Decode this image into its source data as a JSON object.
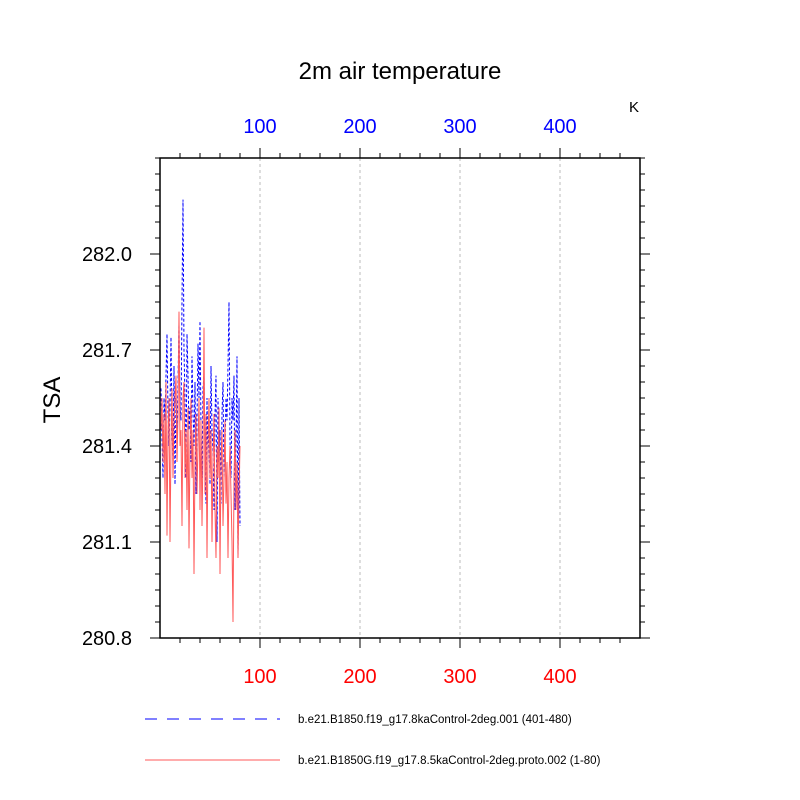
{
  "chart_data": {
    "type": "line",
    "title": "2m air temperature",
    "units_label": "K",
    "ylabel": "TSA",
    "xlabel": "",
    "xlim": [
      0,
      480
    ],
    "ylim": [
      280.8,
      282.3
    ],
    "x_ticks": [
      100,
      200,
      300,
      400
    ],
    "y_ticks": [
      280.8,
      281.1,
      281.4,
      281.7,
      282.0
    ],
    "grid_x": true,
    "series": [
      {
        "name": "b.e21.B1850.f19_g17.8kaControl-2deg.001 (401-480)",
        "color": "#0000ff",
        "style": "dashed",
        "axis": "top",
        "x": [
          1,
          2,
          3,
          4,
          5,
          6,
          7,
          8,
          9,
          10,
          11,
          12,
          13,
          14,
          15,
          16,
          17,
          18,
          19,
          20,
          21,
          22,
          23,
          24,
          25,
          26,
          27,
          28,
          29,
          30,
          31,
          32,
          33,
          34,
          35,
          36,
          37,
          38,
          39,
          40,
          41,
          42,
          43,
          44,
          45,
          46,
          47,
          48,
          49,
          50,
          51,
          52,
          53,
          54,
          55,
          56,
          57,
          58,
          59,
          60,
          61,
          62,
          63,
          64,
          65,
          66,
          67,
          68,
          69,
          70,
          71,
          72,
          73,
          74,
          75,
          76,
          77,
          78,
          79,
          80
        ],
        "values": [
          281.58,
          281.42,
          281.3,
          281.55,
          281.48,
          281.62,
          281.75,
          281.5,
          281.4,
          281.52,
          281.74,
          281.45,
          281.35,
          281.65,
          281.28,
          281.55,
          281.44,
          281.6,
          281.78,
          281.52,
          281.48,
          281.85,
          282.17,
          281.7,
          281.55,
          281.3,
          281.75,
          281.62,
          281.45,
          281.52,
          281.35,
          281.68,
          281.5,
          281.4,
          281.6,
          281.25,
          281.48,
          281.72,
          281.55,
          281.79,
          281.45,
          281.3,
          281.58,
          281.62,
          281.4,
          281.22,
          281.55,
          281.35,
          281.5,
          281.28,
          281.65,
          281.45,
          281.38,
          281.2,
          281.5,
          281.62,
          281.1,
          281.55,
          281.35,
          281.45,
          281.22,
          281.5,
          281.6,
          281.3,
          281.4,
          281.55,
          281.48,
          281.65,
          281.85,
          281.42,
          281.3,
          281.55,
          281.48,
          281.62,
          281.2,
          281.4,
          281.68,
          281.05,
          281.55,
          281.15
        ]
      },
      {
        "name": "b.e21.B1850G.f19_g17.8.5kaControl-2deg.proto.002 (1-80)",
        "color": "#ff5a5a",
        "style": "solid",
        "axis": "bottom",
        "x": [
          1,
          2,
          3,
          4,
          5,
          6,
          7,
          8,
          9,
          10,
          11,
          12,
          13,
          14,
          15,
          16,
          17,
          18,
          19,
          20,
          21,
          22,
          23,
          24,
          25,
          26,
          27,
          28,
          29,
          30,
          31,
          32,
          33,
          34,
          35,
          36,
          37,
          38,
          39,
          40,
          41,
          42,
          43,
          44,
          45,
          46,
          47,
          48,
          49,
          50,
          51,
          52,
          53,
          54,
          55,
          56,
          57,
          58,
          59,
          60,
          61,
          62,
          63,
          64,
          65,
          66,
          67,
          68,
          69,
          70,
          71,
          72,
          73,
          74,
          75,
          76,
          77,
          78,
          79,
          80
        ],
        "values": [
          281.45,
          281.55,
          281.35,
          281.5,
          281.25,
          281.6,
          281.12,
          281.45,
          281.55,
          281.1,
          281.4,
          281.58,
          281.3,
          281.48,
          281.55,
          281.62,
          281.35,
          281.5,
          281.82,
          281.4,
          281.45,
          281.15,
          281.55,
          281.6,
          281.3,
          281.45,
          281.2,
          281.52,
          281.08,
          281.4,
          281.55,
          281.3,
          281.45,
          281.0,
          281.35,
          281.5,
          281.25,
          281.4,
          281.55,
          281.2,
          281.48,
          281.15,
          281.38,
          281.77,
          281.25,
          281.5,
          281.05,
          281.4,
          281.55,
          281.3,
          281.45,
          281.1,
          281.35,
          281.5,
          281.2,
          281.05,
          281.4,
          281.3,
          281.52,
          281.0,
          281.35,
          281.45,
          281.15,
          281.3,
          281.48,
          281.22,
          281.35,
          281.05,
          281.3,
          281.4,
          281.25,
          281.1,
          280.85,
          281.3,
          281.45,
          281.2,
          281.35,
          281.05,
          281.25,
          281.4
        ]
      }
    ]
  }
}
